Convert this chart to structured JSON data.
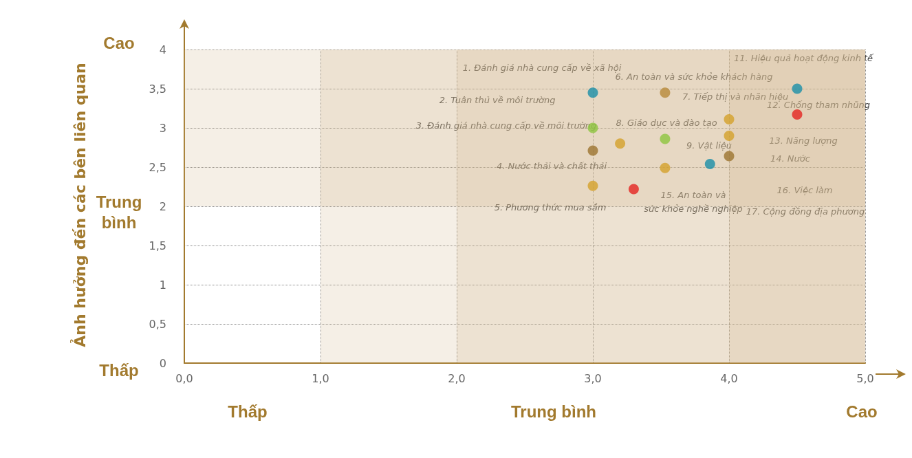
{
  "chart_data": {
    "type": "scatter",
    "ylabel": "Ảnh hưởng đến các bên liên quan",
    "xlim": [
      0,
      5
    ],
    "xticks": [
      {
        "value": 0,
        "label": "0,0"
      },
      {
        "value": 1,
        "label": "1,0"
      },
      {
        "value": 2,
        "label": "2,0"
      },
      {
        "value": 3,
        "label": "3,0"
      },
      {
        "value": 4,
        "label": "4,0"
      },
      {
        "value": 5,
        "label": "5,0"
      }
    ],
    "ylim": [
      0,
      4
    ],
    "yticks": [
      0,
      {
        "value": 0.5,
        "label": "0,5"
      },
      1,
      {
        "value": 1.5,
        "label": "1,5"
      },
      2,
      {
        "value": 2.5,
        "label": "2,5"
      },
      3,
      {
        "value": 3.5,
        "label": "3,5"
      },
      4
    ],
    "grid": true,
    "marker": "circle",
    "series": [
      {
        "color": "#1a8fa8",
        "x": [
          3.0,
          4.5,
          3.86
        ],
        "values": [
          3.45,
          3.5,
          2.54
        ]
      },
      {
        "color": "#b8893a",
        "x": [
          3.53
        ],
        "values": [
          3.45
        ]
      },
      {
        "color": "#e52421",
        "x": [
          4.5,
          3.3
        ],
        "values": [
          3.17,
          2.22
        ]
      },
      {
        "color": "#8dc63f",
        "x": [
          3.0,
          3.53
        ],
        "values": [
          3.0,
          2.86
        ]
      },
      {
        "color": "#d4a12a",
        "x": [
          4.0,
          4.0,
          3.2,
          3.53,
          3.0
        ],
        "values": [
          3.11,
          2.9,
          2.8,
          2.49,
          2.26
        ]
      },
      {
        "color": "#9c7430",
        "x": [
          3.0,
          4.0
        ],
        "values": [
          2.71,
          2.64
        ]
      }
    ],
    "bands": [
      {
        "axis": "x",
        "from": 1,
        "to": 5,
        "color": "#d2b48c"
      },
      {
        "axis": "x",
        "from": 2,
        "to": 5,
        "color": "#d2b48c"
      },
      {
        "axis": "x",
        "from": 4,
        "to": 5,
        "color": "#d2b48c"
      },
      {
        "axis": "y",
        "from": 2,
        "to": 4,
        "color": "#d2b48c"
      }
    ],
    "annotations": [
      "1. Đánh giá nhà cung cấp về xã hội",
      "2. Tuân thủ về môi trường",
      "3. Đánh giá nhà cung cấp về môi trường",
      "4. Nước thải và chất thải",
      "5. Phương thức mua sắm",
      "6. An toàn và sức khỏe khách hàng",
      "7. Tiếp thị và nhãn hiệu",
      "8. Giáo dục và đào tạo",
      "9. Vật liệu",
      "11. Hiệu quả hoạt động kinh tế",
      "12. Chống tham nhũng",
      "13. Năng lượng",
      "14. Nước",
      "15. An toàn và\nsức khỏe nghề nghiệp",
      "16. Việc làm",
      "17. Cộng đồng địa phương",
      "Thấp",
      "Trung bình",
      "Cao",
      "Cao",
      "Trung\nbình",
      "Thấp"
    ]
  }
}
